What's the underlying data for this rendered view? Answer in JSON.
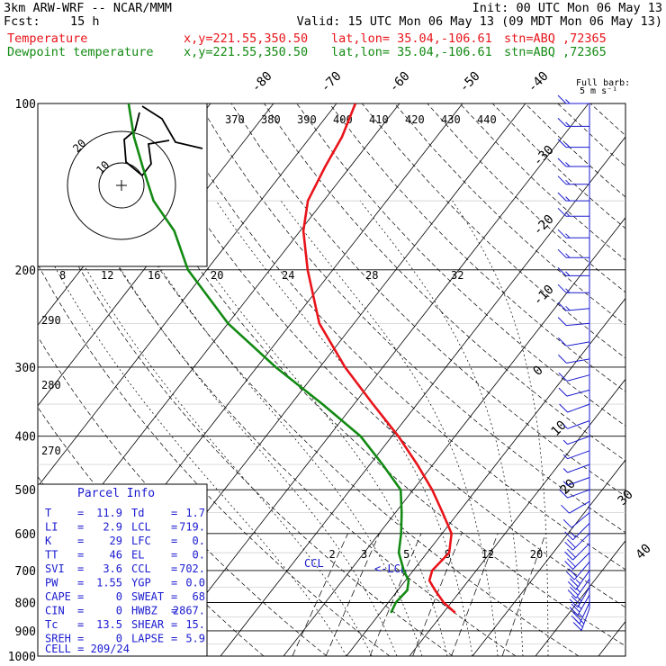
{
  "header": {
    "model": "3km ARW-WRF -- NCAR/MMM",
    "init": "Init: 00 UTC Mon 06 May 13",
    "fcst_label": "Fcst:",
    "fcst_value": "15 h",
    "valid": "Valid: 15 UTC Mon 06 May 13 (09 MDT Mon 06 May 13)",
    "line1": {
      "name": "Temperature",
      "xy": "x,y=221.55,350.50",
      "latlon": "lat,lon= 35.04,-106.61",
      "stn": "stn=ABQ ,72365",
      "color": "#e8141a"
    },
    "line2": {
      "name": "Dewpoint temperature",
      "xy": "x,y=221.55,350.50",
      "latlon": "lat,lon= 35.04,-106.61",
      "stn": "stn=ABQ ,72365",
      "color": "#138a13"
    }
  },
  "barb_legend": [
    "Full barb:",
    "5 m s⁻¹"
  ],
  "chart_data": {
    "type": "line",
    "pressure_levels": [
      100,
      200,
      300,
      400,
      500,
      600,
      700,
      800,
      900,
      1000
    ],
    "pressure_ticks": [
      "100",
      "200",
      "300",
      "400",
      "500",
      "600",
      "700",
      "800",
      "900",
      "1000"
    ],
    "temp_ticks_top": [
      "-80",
      "-70",
      "-60",
      "-50",
      "-40"
    ],
    "temp_ticks_right": [
      "-30",
      "-20",
      "-10",
      "0",
      "10",
      "20",
      "30",
      "40"
    ],
    "theta_labels": [
      "370",
      "380",
      "390",
      "400",
      "410",
      "420",
      "430",
      "440"
    ],
    "theta_labels_left": [
      "290",
      "280",
      "270"
    ],
    "speed_labels": [
      "8",
      "12",
      "16",
      "20",
      "24",
      "28",
      "32"
    ],
    "speed_unit": "kts",
    "mixing_ratio_labels": [
      "2",
      "3",
      "5",
      "8",
      "12",
      "20"
    ],
    "ccl_label": "CCL",
    "lcl_label": "<-LCL",
    "hodograph_ring_labels": [
      "20",
      "10"
    ],
    "series": [
      {
        "name": "Temperature",
        "color": "#e8141a",
        "points": [
          [
            835,
            11.9
          ],
          [
            800,
            8.8
          ],
          [
            760,
            5.9
          ],
          [
            730,
            3.8
          ],
          [
            700,
            3.0
          ],
          [
            650,
            3.5
          ],
          [
            600,
            1.5
          ],
          [
            550,
            -2.5
          ],
          [
            500,
            -7.0
          ],
          [
            450,
            -12.5
          ],
          [
            400,
            -19.0
          ],
          [
            350,
            -27.0
          ],
          [
            300,
            -36.0
          ],
          [
            250,
            -45.5
          ],
          [
            200,
            -54.0
          ],
          [
            170,
            -59.5
          ],
          [
            150,
            -62.5
          ],
          [
            130,
            -64.0
          ],
          [
            115,
            -65.0
          ],
          [
            100,
            -67.0
          ]
        ]
      },
      {
        "name": "Dewpoint temperature",
        "color": "#138a13",
        "points": [
          [
            835,
            1.7
          ],
          [
            800,
            1.2
          ],
          [
            760,
            1.5
          ],
          [
            730,
            0.5
          ],
          [
            700,
            -1.5
          ],
          [
            650,
            -4.5
          ],
          [
            600,
            -6.5
          ],
          [
            550,
            -9.0
          ],
          [
            500,
            -12.0
          ],
          [
            450,
            -18.0
          ],
          [
            400,
            -25.0
          ],
          [
            350,
            -35.0
          ],
          [
            300,
            -47.0
          ],
          [
            250,
            -60.0
          ],
          [
            200,
            -73.0
          ],
          [
            170,
            -80.0
          ],
          [
            150,
            -87.0
          ],
          [
            130,
            -93.0
          ],
          [
            115,
            -98.0
          ],
          [
            100,
            -103.0
          ]
        ]
      }
    ],
    "wind_barbs": {
      "levels": [
        100,
        110,
        120,
        130,
        140,
        150,
        160,
        175,
        190,
        205,
        220,
        235,
        250,
        270,
        290,
        310,
        330,
        350,
        375,
        400,
        425,
        450,
        475,
        500,
        525,
        550,
        575,
        600,
        625,
        650,
        675,
        700,
        725,
        750,
        775,
        800,
        820
      ],
      "speed_ms": [
        15,
        15,
        15,
        15,
        15,
        15,
        15,
        15,
        15,
        15,
        15,
        15,
        10,
        10,
        10,
        10,
        10,
        10,
        5,
        5,
        5,
        5,
        5,
        10,
        10,
        10,
        15,
        20,
        20,
        20,
        20,
        25,
        25,
        25,
        25,
        25,
        25
      ],
      "dir_deg": [
        270,
        270,
        270,
        270,
        270,
        270,
        270,
        270,
        270,
        270,
        270,
        265,
        265,
        260,
        260,
        255,
        255,
        250,
        250,
        250,
        250,
        250,
        250,
        250,
        240,
        230,
        225,
        225,
        225,
        225,
        220,
        215,
        215,
        210,
        210,
        205,
        200
      ]
    },
    "hodograph": {
      "points": [
        [
          70,
          118
        ],
        [
          55,
          155
        ],
        [
          30,
          160
        ],
        [
          15,
          175
        ],
        [
          10,
          185
        ],
        [
          0,
          200
        ],
        [
          -5,
          210
        ],
        [
          -12,
          220
        ]
      ]
    }
  },
  "parcel_info": {
    "title": "Parcel Info",
    "rows": [
      {
        "k1": "T",
        "v1": "11.9",
        "k2": "Td",
        "v2": "1.7"
      },
      {
        "k1": "LI",
        "v1": "2.9",
        "k2": "LCL",
        "v2": "719."
      },
      {
        "k1": "K",
        "v1": "29",
        "k2": "LFC",
        "v2": "0."
      },
      {
        "k1": "TT",
        "v1": "46",
        "k2": "EL",
        "v2": "0."
      },
      {
        "k1": "SVI",
        "v1": "3.6",
        "k2": "CCL",
        "v2": "702."
      },
      {
        "k1": "PW",
        "v1": "1.55",
        "k2": "YGP",
        "v2": "0.0"
      },
      {
        "k1": "CAPE",
        "v1": "0",
        "k2": "SWEAT",
        "v2": "68"
      },
      {
        "k1": "CIN",
        "v1": "0",
        "k2": "HWBZ",
        "v2": "2867."
      },
      {
        "k1": "Tc",
        "v1": "13.5",
        "k2": "SHEAR",
        "v2": "15."
      },
      {
        "k1": "SREH",
        "v1": "0",
        "k2": "LAPSE",
        "v2": "5.9"
      }
    ],
    "cell_key": "CELL",
    "cell_value": "209/24"
  }
}
